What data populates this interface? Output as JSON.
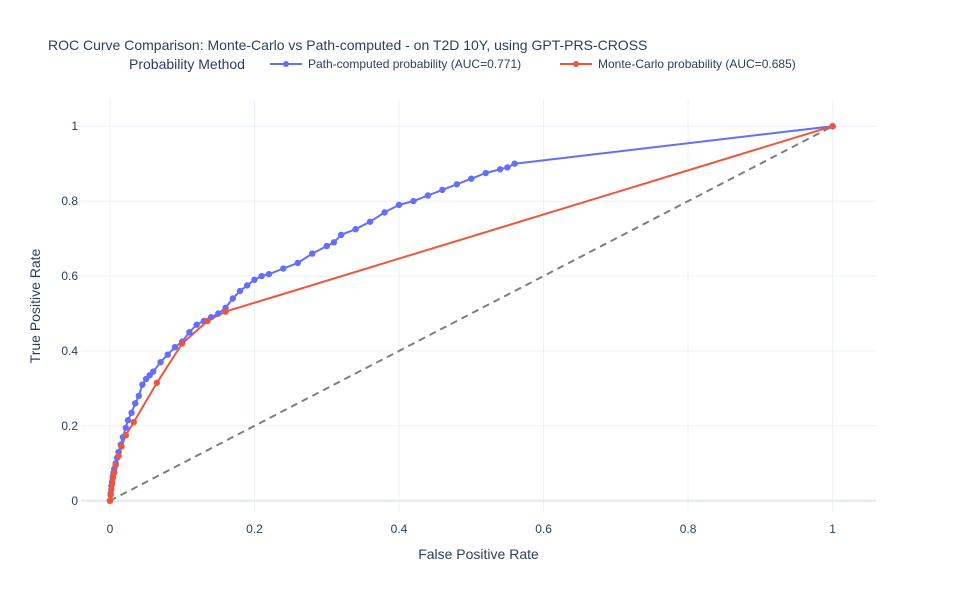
{
  "chart_data": {
    "type": "line",
    "title": "ROC Curve Comparison: Monte-Carlo vs Path-computed - on T2D 10Y, using GPT-PRS-CROSS",
    "xlabel": "False Positive Rate",
    "ylabel": "True Positive Rate",
    "xlim": [
      -0.04,
      1.06
    ],
    "ylim": [
      -0.03,
      1.07
    ],
    "x_ticks": [
      "0",
      "0.2",
      "0.4",
      "0.6",
      "0.8",
      "1"
    ],
    "y_ticks": [
      "0",
      "0.2",
      "0.4",
      "0.6",
      "0.8",
      "1"
    ],
    "grid": true,
    "legend_title": "Probability Method",
    "legend_position": "top",
    "series": [
      {
        "name": "Path-computed probability (AUC=0.771)",
        "color": "#636efa",
        "x": [
          0,
          0.001,
          0.002,
          0.003,
          0.004,
          0.005,
          0.006,
          0.008,
          0.01,
          0.012,
          0.015,
          0.018,
          0.022,
          0.025,
          0.03,
          0.035,
          0.04,
          0.045,
          0.05,
          0.055,
          0.06,
          0.07,
          0.08,
          0.09,
          0.1,
          0.11,
          0.12,
          0.13,
          0.14,
          0.15,
          0.16,
          0.17,
          0.18,
          0.19,
          0.2,
          0.21,
          0.22,
          0.24,
          0.26,
          0.28,
          0.3,
          0.31,
          0.32,
          0.34,
          0.36,
          0.38,
          0.4,
          0.42,
          0.44,
          0.46,
          0.48,
          0.5,
          0.52,
          0.54,
          0.55,
          0.56,
          1
        ],
        "values": [
          0,
          0.02,
          0.04,
          0.05,
          0.065,
          0.075,
          0.085,
          0.1,
          0.115,
          0.13,
          0.15,
          0.17,
          0.195,
          0.215,
          0.235,
          0.26,
          0.28,
          0.31,
          0.325,
          0.335,
          0.345,
          0.37,
          0.39,
          0.41,
          0.425,
          0.45,
          0.47,
          0.48,
          0.49,
          0.5,
          0.515,
          0.54,
          0.56,
          0.575,
          0.59,
          0.6,
          0.605,
          0.62,
          0.635,
          0.66,
          0.68,
          0.69,
          0.71,
          0.725,
          0.745,
          0.77,
          0.79,
          0.8,
          0.815,
          0.83,
          0.845,
          0.86,
          0.875,
          0.885,
          0.89,
          0.9,
          1
        ]
      },
      {
        "name": "Monte-Carlo probability (AUC=0.685)",
        "color": "#ef553b",
        "x": [
          0,
          0.001,
          0.002,
          0.003,
          0.004,
          0.006,
          0.008,
          0.012,
          0.016,
          0.022,
          0.033,
          0.065,
          0.1,
          0.135,
          0.16,
          1
        ],
        "values": [
          0,
          0.015,
          0.03,
          0.045,
          0.06,
          0.075,
          0.095,
          0.12,
          0.145,
          0.175,
          0.21,
          0.315,
          0.42,
          0.48,
          0.505,
          1
        ]
      }
    ],
    "diagonal": {
      "x": [
        0,
        1
      ],
      "values": [
        0,
        1
      ],
      "color": "#7f7f7f",
      "style": "dashed"
    }
  }
}
